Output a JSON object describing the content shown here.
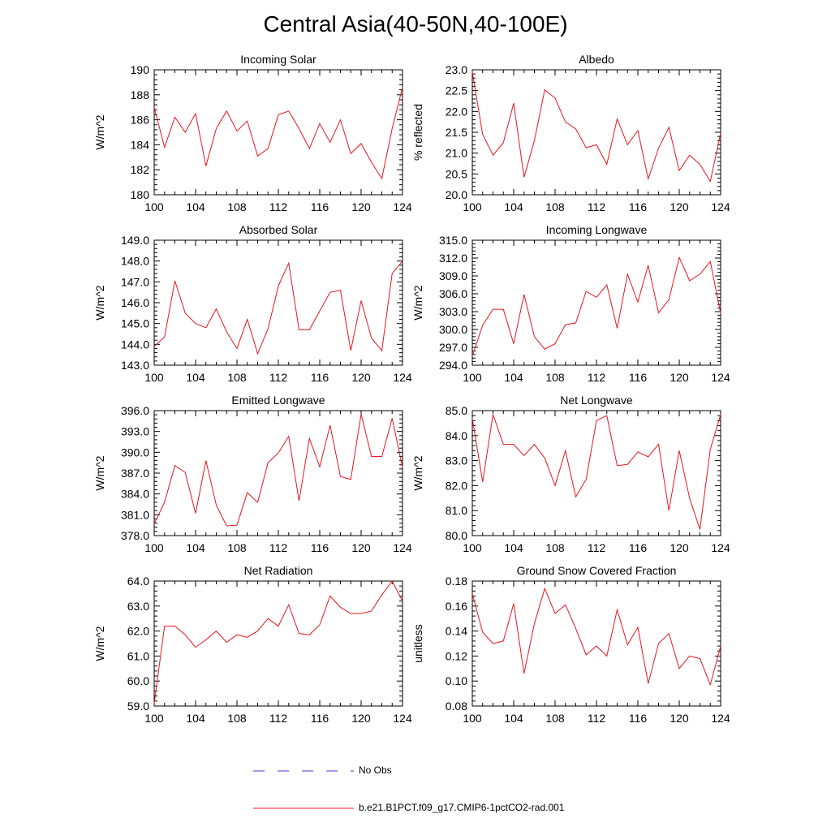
{
  "title": "Central Asia(40-50N,40-100E)",
  "legend": {
    "obs_label": "No Obs",
    "obs_color": "#3b3bd6",
    "model_label": "b.e21.B1PCT.f09_g17.CMIP6-1pctCO2-rad.001",
    "model_color": "#e8141e"
  },
  "chart_data": [
    {
      "type": "line",
      "title": "Incoming Solar",
      "ylabel": "W/m^2",
      "xlabel": "",
      "xlim": [
        100,
        124
      ],
      "ylim": [
        180,
        190
      ],
      "xticks": [
        "100",
        "104",
        "108",
        "112",
        "116",
        "120",
        "124"
      ],
      "yticks": [
        "180",
        "182",
        "184",
        "186",
        "188",
        "190"
      ],
      "x": [
        100,
        101,
        102,
        103,
        104,
        105,
        106,
        107,
        108,
        109,
        110,
        111,
        112,
        113,
        114,
        115,
        116,
        117,
        118,
        119,
        120,
        121,
        122,
        123,
        124
      ],
      "series": [
        {
          "values": [
            187.0,
            183.8,
            186.2,
            185.0,
            186.5,
            182.3,
            185.3,
            186.7,
            185.1,
            185.9,
            183.1,
            183.7,
            186.4,
            186.7,
            185.3,
            183.7,
            185.7,
            184.2,
            186.0,
            183.3,
            184.1,
            182.6,
            181.3,
            185.3,
            188.6
          ]
        }
      ]
    },
    {
      "type": "line",
      "title": "Albedo",
      "ylabel": "% reflected",
      "xlabel": "",
      "xlim": [
        100,
        124
      ],
      "ylim": [
        20.0,
        23.0
      ],
      "xticks": [
        "100",
        "104",
        "108",
        "112",
        "116",
        "120",
        "124"
      ],
      "yticks": [
        "20.0",
        "20.5",
        "21.0",
        "21.5",
        "22.0",
        "22.5",
        "23.0"
      ],
      "x": [
        100,
        101,
        102,
        103,
        104,
        105,
        106,
        107,
        108,
        109,
        110,
        111,
        112,
        113,
        114,
        115,
        116,
        117,
        118,
        119,
        120,
        121,
        122,
        123,
        124
      ],
      "series": [
        {
          "values": [
            22.95,
            21.45,
            20.95,
            21.25,
            22.2,
            20.42,
            21.3,
            22.52,
            22.32,
            21.75,
            21.58,
            21.13,
            21.2,
            20.73,
            21.82,
            21.2,
            21.54,
            20.38,
            21.12,
            21.62,
            20.58,
            20.95,
            20.73,
            20.32,
            21.48
          ]
        }
      ]
    },
    {
      "type": "line",
      "title": "Absorbed Solar",
      "ylabel": "W/m^2",
      "xlabel": "",
      "xlim": [
        100,
        124
      ],
      "ylim": [
        143.0,
        149.0
      ],
      "xticks": [
        "100",
        "104",
        "108",
        "112",
        "116",
        "120",
        "124"
      ],
      "yticks": [
        "143.0",
        "144.0",
        "145.0",
        "146.0",
        "147.0",
        "148.0",
        "149.0"
      ],
      "x": [
        100,
        101,
        102,
        103,
        104,
        105,
        106,
        107,
        108,
        109,
        110,
        111,
        112,
        113,
        114,
        115,
        116,
        117,
        118,
        119,
        120,
        121,
        122,
        123,
        124
      ],
      "series": [
        {
          "values": [
            143.9,
            144.35,
            147.05,
            145.5,
            145.0,
            144.8,
            145.7,
            144.6,
            143.8,
            145.2,
            143.55,
            144.75,
            146.8,
            147.9,
            144.7,
            144.7,
            145.6,
            146.5,
            146.6,
            143.7,
            146.1,
            144.3,
            143.7,
            147.4,
            148.0
          ]
        }
      ]
    },
    {
      "type": "line",
      "title": "Incoming Longwave",
      "ylabel": "W/m^2",
      "xlabel": "",
      "xlim": [
        100,
        124
      ],
      "ylim": [
        294.0,
        315.0
      ],
      "xticks": [
        "100",
        "104",
        "108",
        "112",
        "116",
        "120",
        "124"
      ],
      "yticks": [
        "294.0",
        "297.0",
        "300.0",
        "303.0",
        "306.0",
        "309.0",
        "312.0",
        "315.0"
      ],
      "x": [
        100,
        101,
        102,
        103,
        104,
        105,
        106,
        107,
        108,
        109,
        110,
        111,
        112,
        113,
        114,
        115,
        116,
        117,
        118,
        119,
        120,
        121,
        122,
        123,
        124
      ],
      "series": [
        {
          "values": [
            295.5,
            300.7,
            303.4,
            303.4,
            297.6,
            305.9,
            298.8,
            296.7,
            297.6,
            300.8,
            301.1,
            306.4,
            305.4,
            307.5,
            300.2,
            309.3,
            304.6,
            310.8,
            302.8,
            305.0,
            312.1,
            308.2,
            309.3,
            311.4,
            302.7
          ]
        }
      ]
    },
    {
      "type": "line",
      "title": "Emitted Longwave",
      "ylabel": "W/m^2",
      "xlabel": "",
      "xlim": [
        100,
        124
      ],
      "ylim": [
        378.0,
        396.0
      ],
      "xticks": [
        "100",
        "104",
        "108",
        "112",
        "116",
        "120",
        "124"
      ],
      "yticks": [
        "378.0",
        "381.0",
        "384.0",
        "387.0",
        "390.0",
        "393.0",
        "396.0"
      ],
      "x": [
        100,
        101,
        102,
        103,
        104,
        105,
        106,
        107,
        108,
        109,
        110,
        111,
        112,
        113,
        114,
        115,
        116,
        117,
        118,
        119,
        120,
        121,
        122,
        123,
        124
      ],
      "series": [
        {
          "values": [
            379.7,
            382.8,
            388.1,
            387.1,
            381.2,
            388.8,
            382.4,
            379.4,
            379.5,
            384.2,
            382.8,
            388.5,
            389.9,
            392.3,
            383.0,
            392.0,
            387.9,
            393.9,
            386.5,
            386.1,
            395.5,
            389.4,
            389.4,
            394.9,
            387.8
          ]
        }
      ]
    },
    {
      "type": "line",
      "title": "Net Longwave",
      "ylabel": "W/m^2",
      "xlabel": "",
      "xlim": [
        100,
        124
      ],
      "ylim": [
        80.0,
        85.0
      ],
      "xticks": [
        "100",
        "104",
        "108",
        "112",
        "116",
        "120",
        "124"
      ],
      "yticks": [
        "80.0",
        "81.0",
        "82.0",
        "83.0",
        "84.0",
        "85.0"
      ],
      "x": [
        100,
        101,
        102,
        103,
        104,
        105,
        106,
        107,
        108,
        109,
        110,
        111,
        112,
        113,
        114,
        115,
        116,
        117,
        118,
        119,
        120,
        121,
        122,
        123,
        124
      ],
      "series": [
        {
          "values": [
            84.7,
            82.15,
            84.85,
            83.65,
            83.65,
            83.2,
            83.65,
            83.1,
            82.0,
            83.4,
            81.55,
            82.25,
            84.6,
            84.8,
            82.8,
            82.85,
            83.35,
            83.15,
            83.65,
            81.0,
            83.4,
            81.5,
            80.25,
            83.45,
            84.85
          ]
        }
      ]
    },
    {
      "type": "line",
      "title": "Net Radiation",
      "ylabel": "W/m^2",
      "xlabel": "",
      "xlim": [
        100,
        124
      ],
      "ylim": [
        59.0,
        64.0
      ],
      "xticks": [
        "100",
        "104",
        "108",
        "112",
        "116",
        "120",
        "124"
      ],
      "yticks": [
        "59.0",
        "60.0",
        "61.0",
        "62.0",
        "63.0",
        "64.0"
      ],
      "x": [
        100,
        101,
        102,
        103,
        104,
        105,
        106,
        107,
        108,
        109,
        110,
        111,
        112,
        113,
        114,
        115,
        116,
        117,
        118,
        119,
        120,
        121,
        122,
        123,
        124
      ],
      "series": [
        {
          "values": [
            59.1,
            62.2,
            62.2,
            61.85,
            61.35,
            61.65,
            62.0,
            61.55,
            61.85,
            61.75,
            62.0,
            62.5,
            62.2,
            63.05,
            61.9,
            61.85,
            62.25,
            63.4,
            62.95,
            62.7,
            62.7,
            62.8,
            63.45,
            64.0,
            63.2
          ]
        }
      ]
    },
    {
      "type": "line",
      "title": "Ground Snow Covered Fraction",
      "ylabel": "unitless",
      "xlabel": "",
      "xlim": [
        100,
        124
      ],
      "ylim": [
        0.08,
        0.18
      ],
      "xticks": [
        "100",
        "104",
        "108",
        "112",
        "116",
        "120",
        "124"
      ],
      "yticks": [
        "0.08",
        "0.10",
        "0.12",
        "0.14",
        "0.16",
        "0.18"
      ],
      "x": [
        100,
        101,
        102,
        103,
        104,
        105,
        106,
        107,
        108,
        109,
        110,
        111,
        112,
        113,
        114,
        115,
        116,
        117,
        118,
        119,
        120,
        121,
        122,
        123,
        124
      ],
      "series": [
        {
          "values": [
            0.17,
            0.139,
            0.13,
            0.132,
            0.162,
            0.106,
            0.146,
            0.174,
            0.154,
            0.161,
            0.142,
            0.121,
            0.128,
            0.12,
            0.157,
            0.129,
            0.143,
            0.098,
            0.13,
            0.138,
            0.11,
            0.12,
            0.118,
            0.097,
            0.128
          ]
        }
      ]
    }
  ]
}
